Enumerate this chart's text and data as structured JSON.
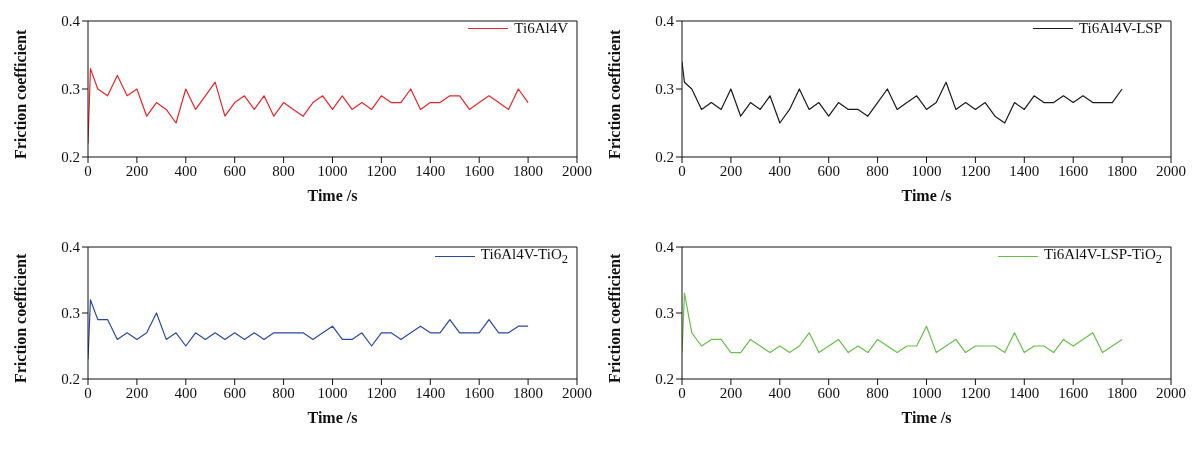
{
  "chart_data": [
    {
      "type": "line",
      "xlabel": "Time /s",
      "ylabel": "Friction coefficient",
      "legend": "top right",
      "grid": false,
      "marker": "none",
      "line_style": "solid",
      "xlim": [
        0,
        2000
      ],
      "xticks": [
        0,
        200,
        400,
        600,
        800,
        1000,
        1200,
        1400,
        1600,
        1800,
        2000
      ],
      "ylim": [
        0.2,
        0.4
      ],
      "yticks": [
        0.2,
        0.3,
        0.4
      ],
      "x": [
        0,
        10,
        40,
        80,
        120,
        160,
        200,
        240,
        280,
        320,
        360,
        400,
        440,
        480,
        520,
        560,
        600,
        640,
        680,
        720,
        760,
        800,
        840,
        880,
        920,
        960,
        1000,
        1040,
        1080,
        1120,
        1160,
        1200,
        1240,
        1280,
        1320,
        1360,
        1400,
        1440,
        1480,
        1520,
        1560,
        1600,
        1640,
        1680,
        1720,
        1760,
        1800
      ],
      "series": [
        {
          "name": "Ti6Al4V",
          "color": "#e8262a",
          "values": [
            0.22,
            0.33,
            0.3,
            0.29,
            0.32,
            0.29,
            0.3,
            0.26,
            0.28,
            0.27,
            0.25,
            0.3,
            0.27,
            0.29,
            0.31,
            0.26,
            0.28,
            0.29,
            0.27,
            0.29,
            0.26,
            0.28,
            0.27,
            0.26,
            0.28,
            0.29,
            0.27,
            0.29,
            0.27,
            0.28,
            0.27,
            0.29,
            0.28,
            0.28,
            0.3,
            0.27,
            0.28,
            0.28,
            0.29,
            0.29,
            0.27,
            0.28,
            0.29,
            0.28,
            0.27,
            0.3,
            0.28
          ]
        }
      ]
    },
    {
      "type": "line",
      "xlabel": "Time /s",
      "ylabel": "Friction coefficient",
      "legend": "top right",
      "grid": false,
      "marker": "none",
      "line_style": "solid",
      "xlim": [
        0,
        2000
      ],
      "xticks": [
        0,
        200,
        400,
        600,
        800,
        1000,
        1200,
        1400,
        1600,
        1800,
        2000
      ],
      "ylim": [
        0.2,
        0.4
      ],
      "yticks": [
        0.2,
        0.3,
        0.4
      ],
      "x": [
        0,
        10,
        40,
        80,
        120,
        160,
        200,
        240,
        280,
        320,
        360,
        400,
        440,
        480,
        520,
        560,
        600,
        640,
        680,
        720,
        760,
        800,
        840,
        880,
        920,
        960,
        1000,
        1040,
        1080,
        1120,
        1160,
        1200,
        1240,
        1280,
        1320,
        1360,
        1400,
        1440,
        1480,
        1520,
        1560,
        1600,
        1640,
        1680,
        1720,
        1760,
        1800
      ],
      "series": [
        {
          "name": "Ti6Al4V-LSP",
          "color": "#1a1a1a",
          "values": [
            0.34,
            0.31,
            0.3,
            0.27,
            0.28,
            0.27,
            0.3,
            0.26,
            0.28,
            0.27,
            0.29,
            0.25,
            0.27,
            0.3,
            0.27,
            0.28,
            0.26,
            0.28,
            0.27,
            0.27,
            0.26,
            0.28,
            0.3,
            0.27,
            0.28,
            0.29,
            0.27,
            0.28,
            0.31,
            0.27,
            0.28,
            0.27,
            0.28,
            0.26,
            0.25,
            0.28,
            0.27,
            0.29,
            0.28,
            0.28,
            0.29,
            0.28,
            0.29,
            0.28,
            0.28,
            0.28,
            0.3
          ]
        }
      ]
    },
    {
      "type": "line",
      "xlabel": "Time /s",
      "ylabel": "Friction coefficient",
      "legend": "top right",
      "grid": false,
      "marker": "none",
      "line_style": "solid",
      "xlim": [
        0,
        2000
      ],
      "xticks": [
        0,
        200,
        400,
        600,
        800,
        1000,
        1200,
        1400,
        1600,
        1800,
        2000
      ],
      "ylim": [
        0.2,
        0.4
      ],
      "yticks": [
        0.2,
        0.3,
        0.4
      ],
      "x": [
        0,
        10,
        40,
        80,
        120,
        160,
        200,
        240,
        280,
        320,
        360,
        400,
        440,
        480,
        520,
        560,
        600,
        640,
        680,
        720,
        760,
        800,
        840,
        880,
        920,
        960,
        1000,
        1040,
        1080,
        1120,
        1160,
        1200,
        1240,
        1280,
        1320,
        1360,
        1400,
        1440,
        1480,
        1520,
        1560,
        1600,
        1640,
        1680,
        1720,
        1760,
        1800
      ],
      "series": [
        {
          "name": "Ti6Al4V-TiO$_{2}$",
          "color": "#2b4a9e",
          "values": [
            0.23,
            0.32,
            0.29,
            0.29,
            0.26,
            0.27,
            0.26,
            0.27,
            0.3,
            0.26,
            0.27,
            0.25,
            0.27,
            0.26,
            0.27,
            0.26,
            0.27,
            0.26,
            0.27,
            0.26,
            0.27,
            0.27,
            0.27,
            0.27,
            0.26,
            0.27,
            0.28,
            0.26,
            0.26,
            0.27,
            0.25,
            0.27,
            0.27,
            0.26,
            0.27,
            0.28,
            0.27,
            0.27,
            0.29,
            0.27,
            0.27,
            0.27,
            0.29,
            0.27,
            0.27,
            0.28,
            0.28
          ]
        }
      ]
    },
    {
      "type": "line",
      "xlabel": "Time /s",
      "ylabel": "Friction coefficient",
      "legend": "top right",
      "grid": false,
      "marker": "none",
      "line_style": "solid",
      "xlim": [
        0,
        2000
      ],
      "xticks": [
        0,
        200,
        400,
        600,
        800,
        1000,
        1200,
        1400,
        1600,
        1800,
        2000
      ],
      "ylim": [
        0.2,
        0.4
      ],
      "yticks": [
        0.2,
        0.3,
        0.4
      ],
      "x": [
        0,
        10,
        40,
        80,
        120,
        160,
        200,
        240,
        280,
        320,
        360,
        400,
        440,
        480,
        520,
        560,
        600,
        640,
        680,
        720,
        760,
        800,
        840,
        880,
        920,
        960,
        1000,
        1040,
        1080,
        1120,
        1160,
        1200,
        1240,
        1280,
        1320,
        1360,
        1400,
        1440,
        1480,
        1520,
        1560,
        1600,
        1640,
        1680,
        1720,
        1760,
        1800
      ],
      "series": [
        {
          "name": "Ti6Al4V-LSP-TiO$_{2}$",
          "color": "#6abf4b",
          "values": [
            0.24,
            0.33,
            0.27,
            0.25,
            0.26,
            0.26,
            0.24,
            0.24,
            0.26,
            0.25,
            0.24,
            0.25,
            0.24,
            0.25,
            0.27,
            0.24,
            0.25,
            0.26,
            0.24,
            0.25,
            0.24,
            0.26,
            0.25,
            0.24,
            0.25,
            0.25,
            0.28,
            0.24,
            0.25,
            0.26,
            0.24,
            0.25,
            0.25,
            0.25,
            0.24,
            0.27,
            0.24,
            0.25,
            0.25,
            0.24,
            0.26,
            0.25,
            0.26,
            0.27,
            0.24,
            0.25,
            0.26
          ]
        }
      ]
    }
  ]
}
